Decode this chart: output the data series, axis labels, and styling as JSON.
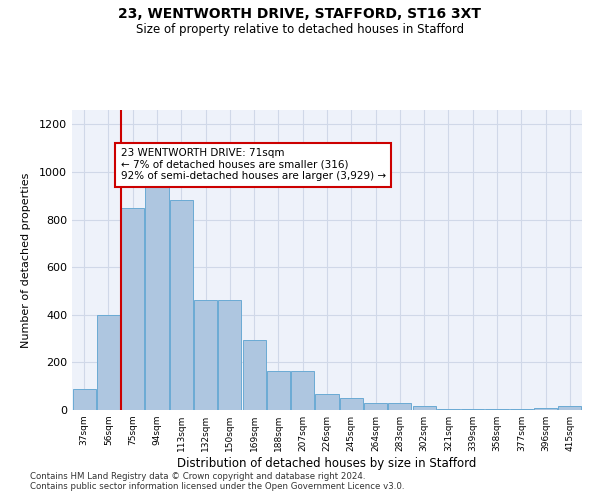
{
  "title1": "23, WENTWORTH DRIVE, STAFFORD, ST16 3XT",
  "title2": "Size of property relative to detached houses in Stafford",
  "xlabel": "Distribution of detached houses by size in Stafford",
  "ylabel": "Number of detached properties",
  "footnote1": "Contains HM Land Registry data © Crown copyright and database right 2024.",
  "footnote2": "Contains public sector information licensed under the Open Government Licence v3.0.",
  "bar_labels": [
    "37sqm",
    "56sqm",
    "75sqm",
    "94sqm",
    "113sqm",
    "132sqm",
    "150sqm",
    "169sqm",
    "188sqm",
    "207sqm",
    "226sqm",
    "245sqm",
    "264sqm",
    "283sqm",
    "302sqm",
    "321sqm",
    "339sqm",
    "358sqm",
    "377sqm",
    "396sqm",
    "415sqm"
  ],
  "bar_values": [
    88,
    400,
    848,
    970,
    880,
    463,
    463,
    295,
    163,
    163,
    68,
    50,
    30,
    30,
    18,
    5,
    5,
    5,
    5,
    10,
    15
  ],
  "bar_color": "#aec6e0",
  "bar_edge_color": "#6aaad4",
  "grid_color": "#d0d8e8",
  "vline_color": "#cc0000",
  "annotation_text": "23 WENTWORTH DRIVE: 71sqm\n← 7% of detached houses are smaller (316)\n92% of semi-detached houses are larger (3,929) →",
  "annotation_box_color": "#cc0000",
  "ylim": [
    0,
    1260
  ],
  "yticks": [
    0,
    200,
    400,
    600,
    800,
    1000,
    1200
  ],
  "background_color": "#eef2fa"
}
